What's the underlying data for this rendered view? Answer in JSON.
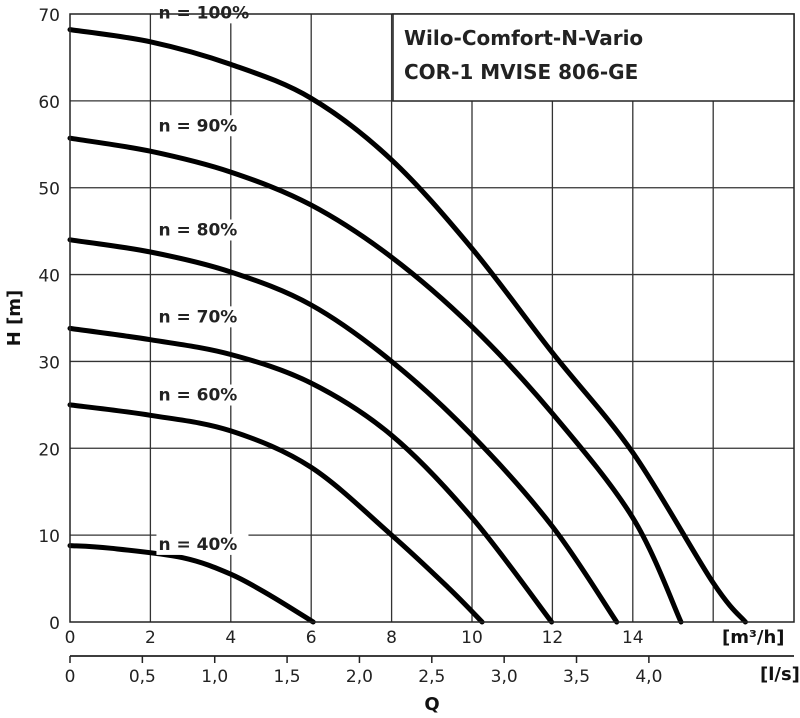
{
  "chart_data": {
    "type": "line",
    "title": "Wilo-Comfort-N-Vario",
    "subtitle": "COR-1 MVISE 806-GE",
    "ylabel": "H [m]",
    "xlabel": "Q",
    "x_unit_primary": "[m³/h]",
    "x_unit_secondary": "[l/s]",
    "xlim": [
      0,
      18
    ],
    "ylim": [
      0,
      70
    ],
    "grid": true,
    "y_ticks": [
      "0",
      "10",
      "20",
      "30",
      "40",
      "50",
      "60",
      "70"
    ],
    "x_ticks_primary": [
      "0",
      "2",
      "4",
      "6",
      "8",
      "10",
      "12",
      "14"
    ],
    "x_ticks_secondary": [
      "0",
      "0,5",
      "1,0",
      "1,5",
      "2,0",
      "2,5",
      "3,0",
      "3,5",
      "4,0"
    ],
    "series": [
      {
        "name": "n = 100%",
        "label_x": 2.2,
        "label_y": 69.5,
        "points": [
          [
            0,
            68.2
          ],
          [
            2,
            66.8
          ],
          [
            4,
            64.2
          ],
          [
            6,
            60.3
          ],
          [
            8,
            53.2
          ],
          [
            10,
            43
          ],
          [
            12,
            31
          ],
          [
            14,
            19.5
          ],
          [
            16,
            4.5
          ],
          [
            16.8,
            0
          ]
        ]
      },
      {
        "name": "n = 90%",
        "label_x": 2.2,
        "label_y": 56.5,
        "points": [
          [
            0,
            55.7
          ],
          [
            2,
            54.2
          ],
          [
            4,
            51.8
          ],
          [
            6,
            48
          ],
          [
            8,
            42
          ],
          [
            10,
            34
          ],
          [
            12,
            24
          ],
          [
            14,
            12
          ],
          [
            15.2,
            0
          ]
        ]
      },
      {
        "name": "n = 80%",
        "label_x": 2.2,
        "label_y": 44.5,
        "points": [
          [
            0,
            44
          ],
          [
            2,
            42.6
          ],
          [
            4,
            40.3
          ],
          [
            6,
            36.5
          ],
          [
            8,
            30
          ],
          [
            10,
            21.5
          ],
          [
            12,
            11
          ],
          [
            13.6,
            0
          ]
        ]
      },
      {
        "name": "n = 70%",
        "label_x": 2.2,
        "label_y": 34.5,
        "points": [
          [
            0,
            33.8
          ],
          [
            2,
            32.5
          ],
          [
            4,
            30.8
          ],
          [
            6,
            27.5
          ],
          [
            8,
            21.5
          ],
          [
            10,
            12
          ],
          [
            11.98,
            0
          ]
        ]
      },
      {
        "name": "n = 60%",
        "label_x": 2.2,
        "label_y": 25.5,
        "points": [
          [
            0,
            25
          ],
          [
            2,
            23.8
          ],
          [
            4,
            22
          ],
          [
            6,
            17.8
          ],
          [
            8,
            10
          ],
          [
            9.4,
            4
          ],
          [
            10.25,
            0
          ]
        ]
      },
      {
        "name": "n = 40%",
        "label_x": 2.2,
        "label_y": 8.3,
        "points": [
          [
            0,
            8.8
          ],
          [
            1,
            8.5
          ],
          [
            2.8,
            7.4
          ],
          [
            4,
            5.5
          ],
          [
            5,
            3
          ],
          [
            6.05,
            0
          ]
        ]
      }
    ]
  }
}
